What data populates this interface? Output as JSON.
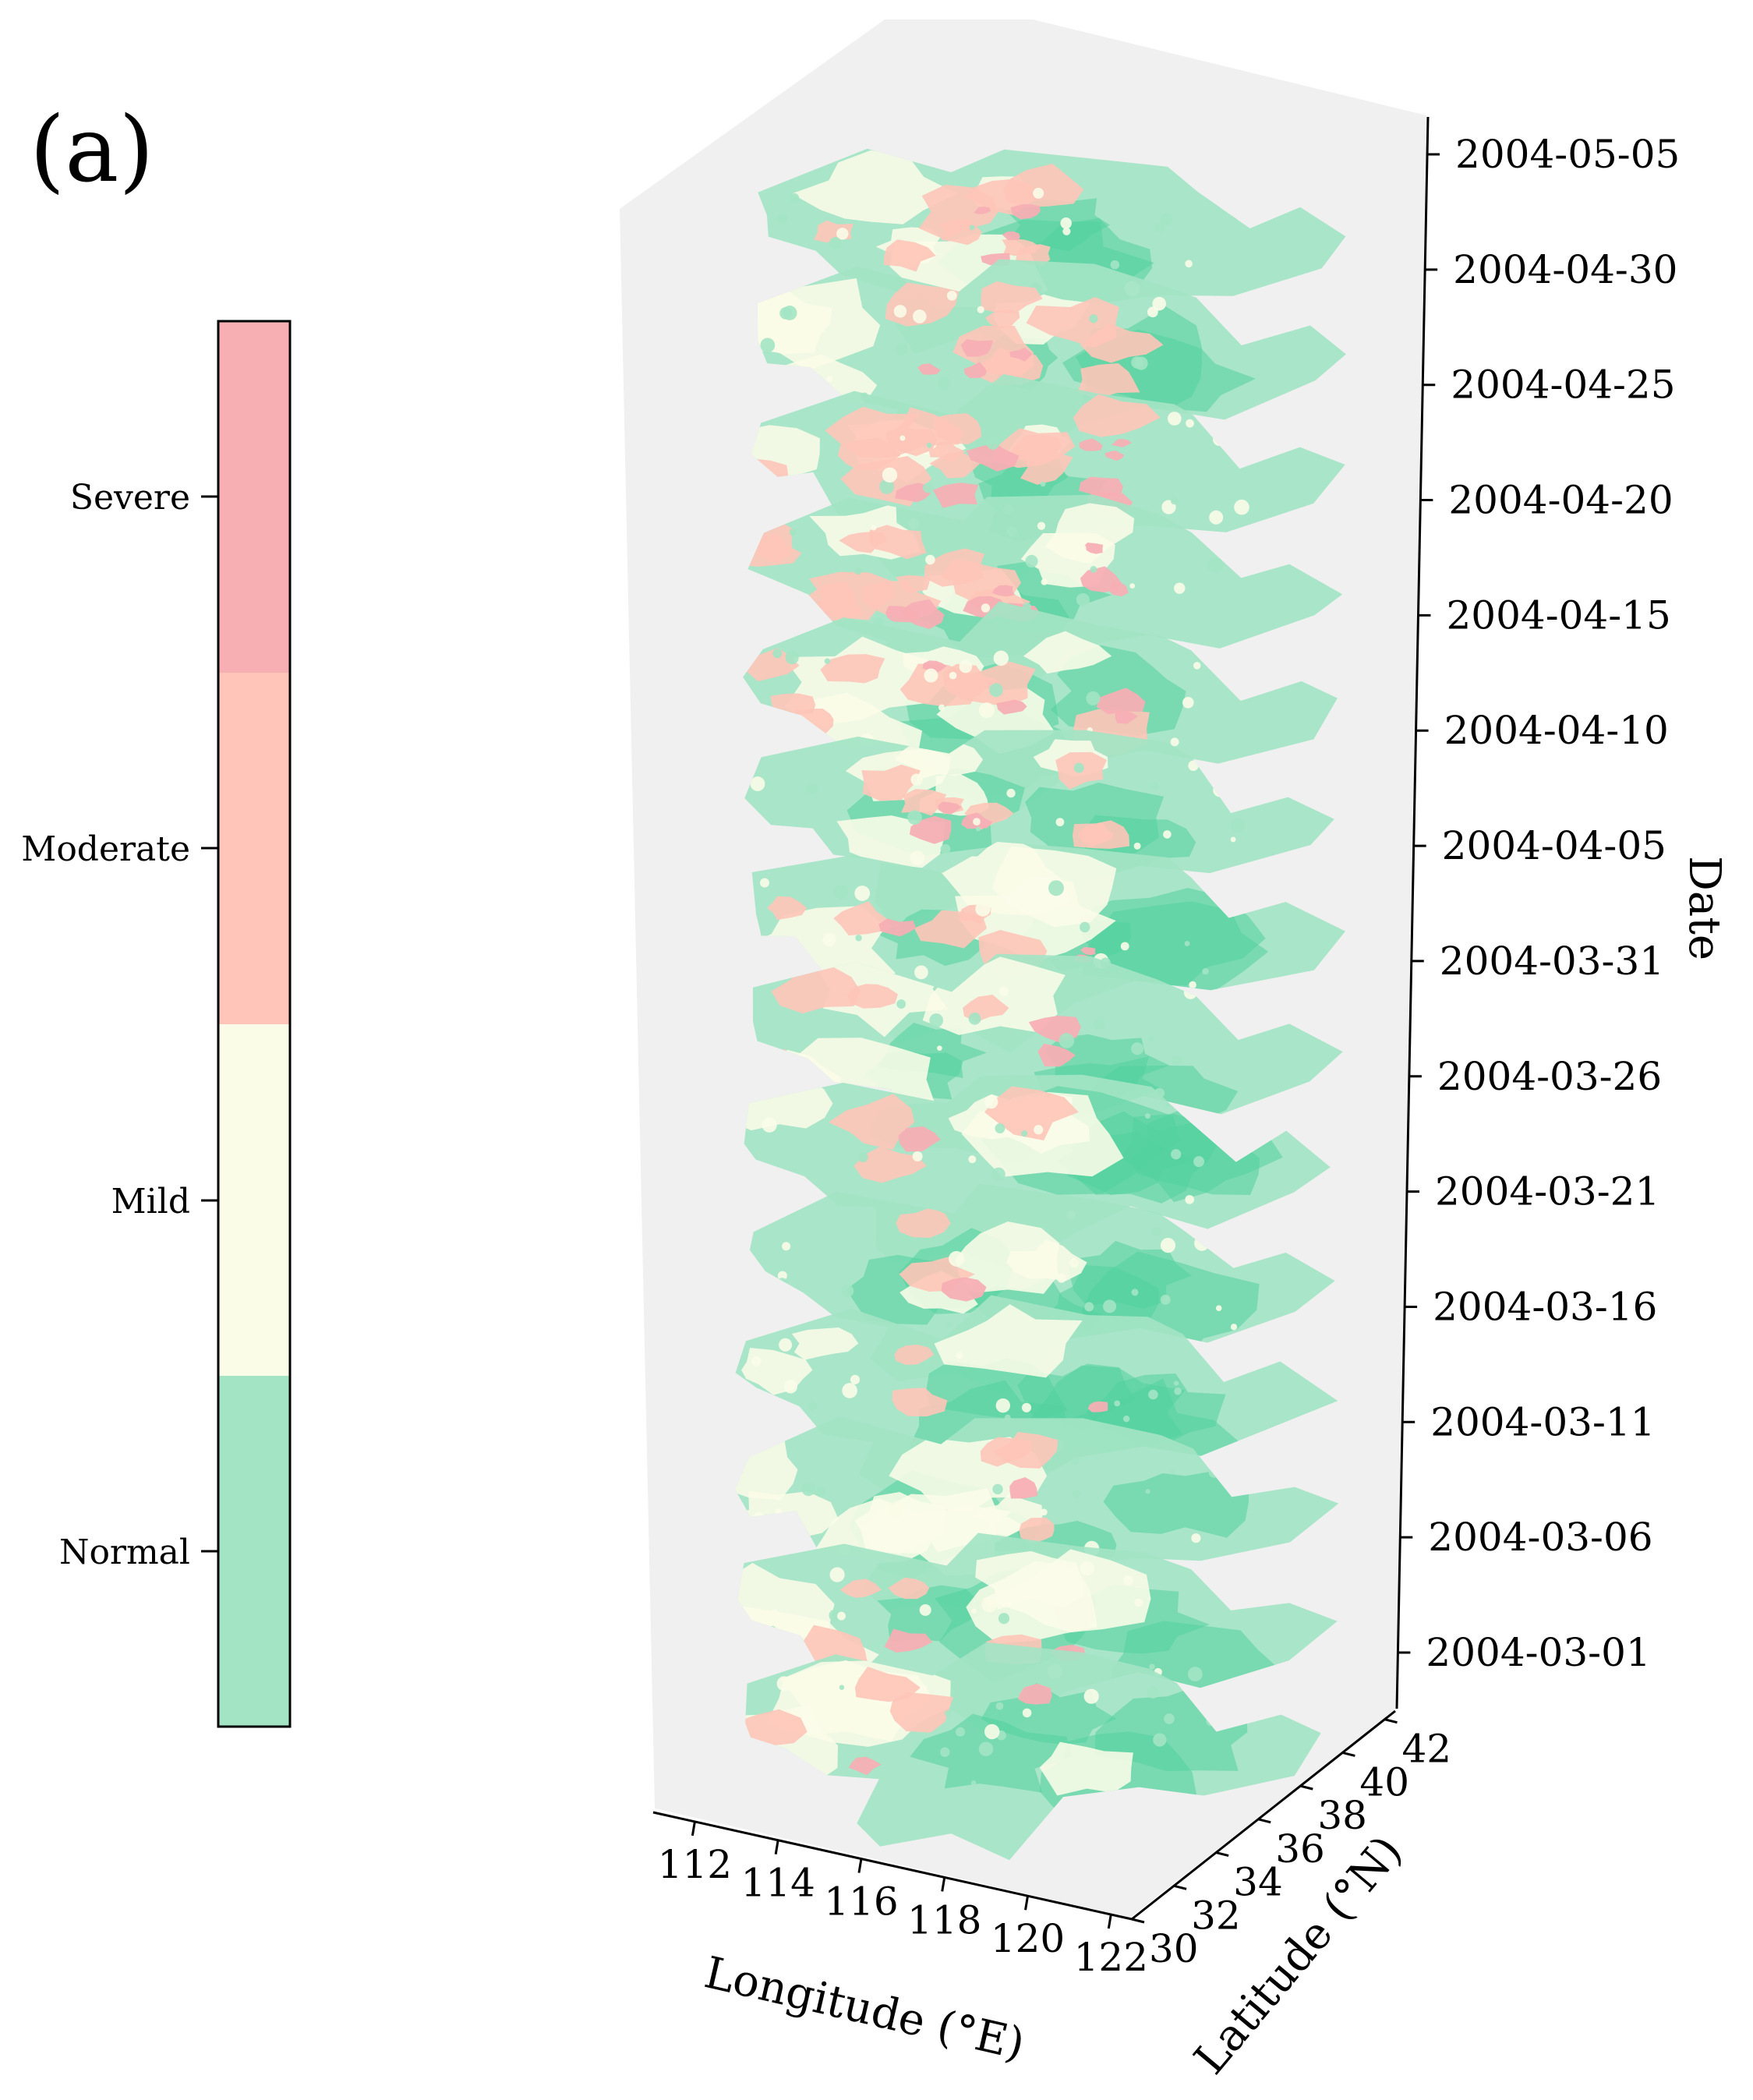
{
  "panel_label": "(a)",
  "colors": {
    "normal": "#a3e4c4",
    "mild": "#fafce8",
    "moderate": "#fec5b8",
    "severe": "#f7afb4",
    "normal_dark": "#52d19e",
    "pane": "#f0f0f0"
  },
  "chart_data": {
    "type": "3d-stacked-map",
    "title": "",
    "colorbar": {
      "labels": [
        "Severe",
        "Moderate",
        "Mild",
        "Normal"
      ],
      "classes": [
        "severe",
        "moderate",
        "mild",
        "normal"
      ]
    },
    "x": {
      "label": "Longitude (°E)",
      "ticks": [
        112,
        114,
        116,
        118,
        120,
        122
      ],
      "range": [
        111,
        122.5
      ]
    },
    "y": {
      "label": "Latitude (°N)",
      "ticks": [
        30,
        32,
        34,
        36,
        38,
        40,
        42
      ],
      "range": [
        30,
        42.5
      ]
    },
    "z": {
      "label": "Date",
      "ticks": [
        "2004-03-01",
        "2004-03-06",
        "2004-03-11",
        "2004-03-16",
        "2004-03-21",
        "2004-03-26",
        "2004-03-31",
        "2004-04-05",
        "2004-04-10",
        "2004-04-15",
        "2004-04-20",
        "2004-04-25",
        "2004-04-30",
        "2004-05-05"
      ]
    },
    "layers": [
      {
        "date": "2004-03-01",
        "normal": 0.55,
        "mild": 0.35,
        "moderate": 0.07,
        "severe": 0.03
      },
      {
        "date": "2004-03-06",
        "normal": 0.55,
        "mild": 0.33,
        "moderate": 0.09,
        "severe": 0.03
      },
      {
        "date": "2004-03-11",
        "normal": 0.35,
        "mild": 0.55,
        "moderate": 0.08,
        "severe": 0.02
      },
      {
        "date": "2004-03-16",
        "normal": 0.7,
        "mild": 0.22,
        "moderate": 0.06,
        "severe": 0.02
      },
      {
        "date": "2004-03-21",
        "normal": 0.72,
        "mild": 0.2,
        "moderate": 0.06,
        "severe": 0.02
      },
      {
        "date": "2004-03-26",
        "normal": 0.65,
        "mild": 0.25,
        "moderate": 0.08,
        "severe": 0.02
      },
      {
        "date": "2004-03-31",
        "normal": 0.62,
        "mild": 0.26,
        "moderate": 0.09,
        "severe": 0.03
      },
      {
        "date": "2004-04-05",
        "normal": 0.5,
        "mild": 0.32,
        "moderate": 0.13,
        "severe": 0.05
      },
      {
        "date": "2004-04-10",
        "normal": 0.42,
        "mild": 0.35,
        "moderate": 0.17,
        "severe": 0.06
      },
      {
        "date": "2004-04-15",
        "normal": 0.38,
        "mild": 0.35,
        "moderate": 0.19,
        "severe": 0.08
      },
      {
        "date": "2004-04-20",
        "normal": 0.25,
        "mild": 0.3,
        "moderate": 0.3,
        "severe": 0.15
      },
      {
        "date": "2004-04-25",
        "normal": 0.22,
        "mild": 0.3,
        "moderate": 0.32,
        "severe": 0.16
      },
      {
        "date": "2004-04-30",
        "normal": 0.4,
        "mild": 0.32,
        "moderate": 0.2,
        "severe": 0.08
      },
      {
        "date": "2004-05-05",
        "normal": 0.42,
        "mild": 0.3,
        "moderate": 0.2,
        "severe": 0.08
      }
    ]
  }
}
